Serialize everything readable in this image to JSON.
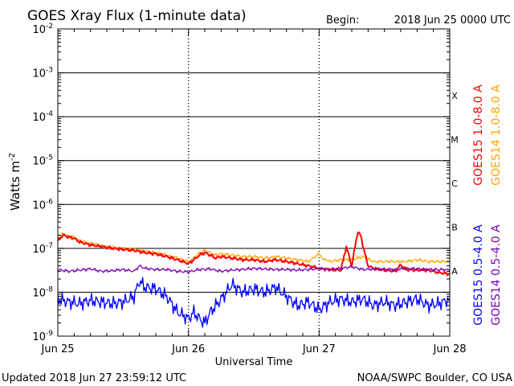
{
  "title": "GOES Xray Flux (1-minute data)",
  "begin_label": "Begin:",
  "begin_value": "2018 Jun 25 0000 UTC",
  "footer_left": "Updated 2018 Jun 27 23:59:12 UTC",
  "footer_right": "NOAA/SWPC Boulder, CO USA",
  "chart_data": {
    "type": "line",
    "title": "GOES Xray Flux (1-minute data)",
    "xlabel": "Universal Time",
    "ylabel": "Watts m",
    "ylabel_exponent": "-2",
    "yscale": "log",
    "ylim": [
      1e-09,
      0.01
    ],
    "xlim": [
      0,
      72
    ],
    "x_unit": "hours since 2018 Jun 25 0000 UTC",
    "x_ticks": [
      {
        "x": 0,
        "label": "Jun 25"
      },
      {
        "x": 24,
        "label": "Jun 26"
      },
      {
        "x": 48,
        "label": "Jun 27"
      },
      {
        "x": 72,
        "label": "Jun 28"
      }
    ],
    "y_ticks": [
      {
        "value": 0.01,
        "base": "10",
        "exp": "-2"
      },
      {
        "value": 0.001,
        "base": "10",
        "exp": "-3"
      },
      {
        "value": 0.0001,
        "base": "10",
        "exp": "-4"
      },
      {
        "value": 1e-05,
        "base": "10",
        "exp": "-5"
      },
      {
        "value": 1e-06,
        "base": "10",
        "exp": "-6"
      },
      {
        "value": 1e-07,
        "base": "10",
        "exp": "-7"
      },
      {
        "value": 1e-08,
        "base": "10",
        "exp": "-8"
      },
      {
        "value": 1e-09,
        "base": "10",
        "exp": "-9"
      }
    ],
    "flare_classes": [
      {
        "label": "X",
        "value": 0.0001
      },
      {
        "label": "M",
        "value": 1e-05
      },
      {
        "label": "C",
        "value": 1e-06
      },
      {
        "label": "B",
        "value": 1e-07
      },
      {
        "label": "A",
        "value": 1e-08
      }
    ],
    "grid": true,
    "legend": [
      {
        "label": "GOES15 1.0-8.0 A",
        "color": "#ff0000"
      },
      {
        "label": "GOES14 1.0-8.0 A",
        "color": "#ffa500"
      },
      {
        "label": "GOES15 0.5-4.0 A",
        "color": "#0000ff"
      },
      {
        "label": "GOES14 0.5-4.0 A",
        "color": "#7a00b4"
      }
    ],
    "series": [
      {
        "name": "GOES14 1.0-8.0 A",
        "color": "#ffa500",
        "x": [
          0,
          1,
          2,
          3,
          4,
          6,
          8,
          10,
          12,
          14,
          16,
          18,
          20,
          22,
          24,
          25,
          26,
          27,
          28,
          29,
          30,
          32,
          34,
          36,
          38,
          40,
          42,
          44,
          46,
          48,
          48.5,
          50,
          52,
          54,
          56,
          58,
          60,
          62,
          63,
          64,
          66,
          68,
          70,
          72
        ],
        "values": [
          1.6e-07,
          2.2e-07,
          1.9e-07,
          1.8e-07,
          1.5e-07,
          1.3e-07,
          1.15e-07,
          1.05e-07,
          1e-07,
          9.5e-08,
          8.5e-08,
          8e-08,
          7e-08,
          6e-08,
          5e-08,
          6e-08,
          8e-08,
          9e-08,
          8e-08,
          7e-08,
          7.5e-08,
          7e-08,
          6.5e-08,
          6.5e-08,
          6e-08,
          6.5e-08,
          6e-08,
          5.5e-08,
          5e-08,
          7.5e-08,
          6e-08,
          5e-08,
          5.5e-08,
          5.5e-08,
          6.5e-08,
          5e-08,
          5e-08,
          5e-08,
          5e-08,
          5e-08,
          5.5e-08,
          5e-08,
          5e-08,
          5e-08
        ]
      },
      {
        "name": "GOES15 1.0-8.0 A",
        "color": "#ff0000",
        "x": [
          0,
          1,
          2,
          3,
          4,
          6,
          8,
          10,
          12,
          14,
          16,
          18,
          20,
          22,
          24,
          25,
          26,
          27,
          28,
          29,
          30,
          32,
          34,
          36,
          38,
          40,
          42,
          44,
          46,
          48,
          48.5,
          50,
          52,
          53,
          54,
          55,
          55.5,
          56,
          57,
          58,
          60,
          62,
          63,
          64,
          66,
          68,
          70,
          72
        ],
        "values": [
          1.5e-07,
          2e-07,
          1.8e-07,
          1.7e-07,
          1.4e-07,
          1.2e-07,
          1.1e-07,
          1e-07,
          9.5e-08,
          9e-08,
          8e-08,
          7.5e-08,
          6.5e-08,
          5.5e-08,
          4.5e-08,
          5.5e-08,
          7e-08,
          8e-08,
          7e-08,
          6e-08,
          6.5e-08,
          6e-08,
          5.5e-08,
          5.5e-08,
          5e-08,
          5.5e-08,
          5e-08,
          4.5e-08,
          4e-08,
          3.5e-08,
          3.4e-08,
          3.3e-08,
          3.2e-08,
          1.1e-07,
          4e-08,
          2.1e-07,
          2.3e-07,
          1.2e-07,
          4e-08,
          3.5e-08,
          3.2e-08,
          3e-08,
          4.2e-08,
          3.3e-08,
          3.2e-08,
          3.2e-08,
          2.8e-08,
          2.6e-08
        ]
      },
      {
        "name": "GOES14 0.5-4.0 A",
        "color": "#7a00b4",
        "x": [
          0,
          2,
          4,
          6,
          8,
          10,
          12,
          14,
          15,
          16,
          18,
          20,
          22,
          24,
          26,
          28,
          30,
          32,
          34,
          36,
          38,
          40,
          42,
          44,
          46,
          48,
          50,
          52,
          54,
          56,
          58,
          60,
          62,
          64,
          66,
          68,
          70,
          72
        ],
        "values": [
          3.3e-08,
          3e-08,
          3.2e-08,
          3.4e-08,
          3e-08,
          3.1e-08,
          3.3e-08,
          3e-08,
          4e-08,
          3.5e-08,
          3.3e-08,
          3.3e-08,
          3e-08,
          2.9e-08,
          3.3e-08,
          3.4e-08,
          3e-08,
          3.2e-08,
          3.3e-08,
          3.5e-08,
          3.4e-08,
          3.3e-08,
          3.3e-08,
          3.2e-08,
          3.3e-08,
          3.5e-08,
          3.3e-08,
          3.5e-08,
          3.8e-08,
          3.3e-08,
          3.4e-08,
          3.3e-08,
          3.3e-08,
          3.5e-08,
          3.4e-08,
          3.3e-08,
          3.3e-08,
          3.2e-08
        ]
      },
      {
        "name": "GOES15 0.5-4.0 A",
        "color": "#0000ff",
        "x": [
          0,
          2,
          4,
          6,
          8,
          10,
          12,
          14,
          15,
          16,
          18,
          20,
          22,
          23,
          24,
          25,
          26,
          27,
          28,
          30,
          32,
          34,
          36,
          38,
          40,
          42,
          44,
          46,
          48,
          50,
          52,
          54,
          56,
          58,
          60,
          62,
          64,
          66,
          68,
          70,
          72
        ],
        "values": [
          7e-09,
          6e-09,
          5.5e-09,
          6.5e-09,
          6e-09,
          5.5e-09,
          6e-09,
          8e-09,
          1.8e-08,
          1.3e-08,
          1.2e-08,
          8e-09,
          3.5e-09,
          3e-09,
          2.5e-09,
          3.5e-09,
          2.5e-09,
          2e-09,
          3.5e-09,
          7e-09,
          1.5e-08,
          1e-08,
          1.2e-08,
          1e-08,
          1.3e-08,
          8e-09,
          5e-09,
          6e-09,
          4e-09,
          6e-09,
          7e-09,
          6e-09,
          7e-09,
          5e-09,
          6e-09,
          5e-09,
          6e-09,
          7e-09,
          5e-09,
          5.5e-09,
          7e-09
        ]
      }
    ]
  }
}
